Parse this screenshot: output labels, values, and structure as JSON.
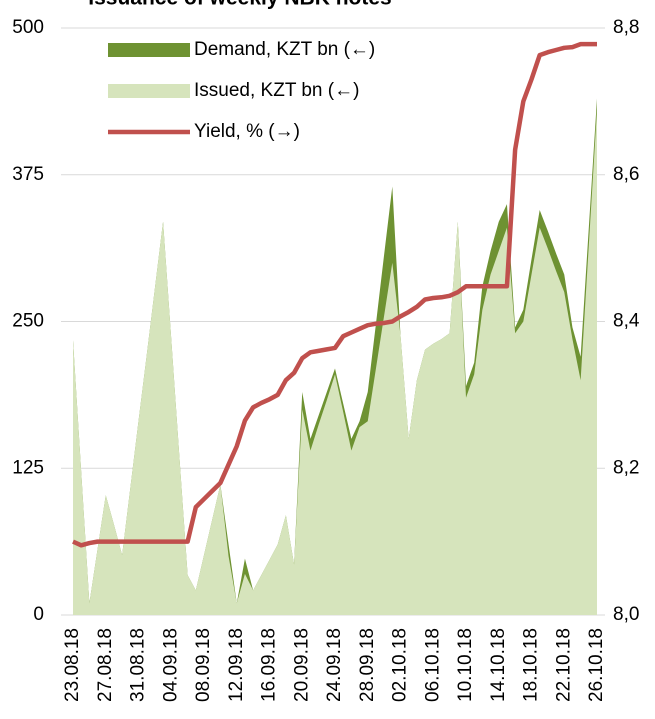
{
  "chart_data": {
    "type": "area-line",
    "title": "Issuance of weekly NBK notes",
    "categories": [
      "23.08.18",
      null,
      null,
      null,
      "27.08.18",
      null,
      null,
      null,
      "31.08.18",
      null,
      null,
      null,
      "04.09.18",
      null,
      null,
      null,
      "08.09.18",
      null,
      null,
      null,
      "12.09.18",
      null,
      null,
      null,
      "16.09.18",
      null,
      null,
      null,
      "20.09.18",
      null,
      null,
      null,
      "24.09.18",
      null,
      null,
      null,
      "28.09.18",
      null,
      null,
      null,
      "02.10.18",
      null,
      null,
      null,
      "06.10.18",
      null,
      null,
      null,
      "10.10.18",
      null,
      null,
      null,
      "14.10.18",
      null,
      null,
      null,
      "18.10.18",
      null,
      null,
      null,
      "22.10.18",
      null,
      null,
      null,
      "26.10.18"
    ],
    "series": [
      {
        "name": "Demand, KZT bn (←)",
        "color": "#6e9232",
        "kind": "area",
        "values": [
          234,
          122,
          10,
          56,
          102,
          77,
          51,
          108,
          165,
          221,
          278,
          335,
          235,
          134,
          34,
          21,
          51,
          81,
          111,
          60,
          10,
          48,
          21,
          34,
          47,
          60,
          85,
          43,
          190,
          150,
          170,
          190,
          210,
          180,
          150,
          165,
          190,
          248,
          307,
          365,
          238,
          150,
          200,
          226,
          231,
          235,
          240,
          335,
          195,
          215,
          280,
          310,
          335,
          350,
          245,
          260,
          303,
          345,
          327,
          308,
          290,
          245,
          220,
          330,
          440
        ]
      },
      {
        "name": "Issued, KZT bn (←)",
        "color": "#d6e4bc",
        "kind": "area",
        "values": [
          234,
          122,
          10,
          56,
          102,
          77,
          51,
          108,
          165,
          221,
          278,
          335,
          235,
          134,
          34,
          21,
          51,
          81,
          111,
          50,
          10,
          35,
          21,
          34,
          47,
          60,
          85,
          43,
          175,
          140,
          162,
          183,
          205,
          173,
          140,
          160,
          165,
          210,
          255,
          300,
          238,
          150,
          200,
          226,
          231,
          235,
          240,
          335,
          185,
          205,
          260,
          290,
          310,
          330,
          240,
          250,
          290,
          330,
          312,
          293,
          275,
          235,
          200,
          315,
          430
        ]
      },
      {
        "name": "Yield, % (→)",
        "color": "#c0504d",
        "kind": "line",
        "axis": "y2",
        "values": [
          8.1,
          8.095,
          8.098,
          8.1,
          8.1,
          8.1,
          8.1,
          8.1,
          8.1,
          8.1,
          8.1,
          8.1,
          8.1,
          8.1,
          8.1,
          8.147,
          8.158,
          8.169,
          8.18,
          8.205,
          8.23,
          8.265,
          8.283,
          8.289,
          8.294,
          8.3,
          8.32,
          8.33,
          8.35,
          8.358,
          8.36,
          8.362,
          8.364,
          8.38,
          8.385,
          8.39,
          8.395,
          8.397,
          8.398,
          8.4,
          8.407,
          8.413,
          8.42,
          8.43,
          8.432,
          8.433,
          8.435,
          8.44,
          8.448,
          8.448,
          8.448,
          8.448,
          8.448,
          8.448,
          8.634,
          8.7,
          8.73,
          8.763,
          8.767,
          8.77,
          8.773,
          8.774,
          8.778,
          8.778,
          8.778
        ]
      }
    ],
    "ylim": [
      0,
      500
    ],
    "yticks": [
      0,
      125,
      250,
      375,
      500
    ],
    "y2lim": [
      8.0,
      8.8
    ],
    "y2ticks": [
      {
        "value": 8.0,
        "label": "8,0"
      },
      {
        "value": 8.2,
        "label": "8,2"
      },
      {
        "value": 8.4,
        "label": "8,4"
      },
      {
        "value": 8.6,
        "label": "8,6"
      },
      {
        "value": 8.8,
        "label": "8,8"
      }
    ],
    "grid": true,
    "legend": "top-left"
  }
}
